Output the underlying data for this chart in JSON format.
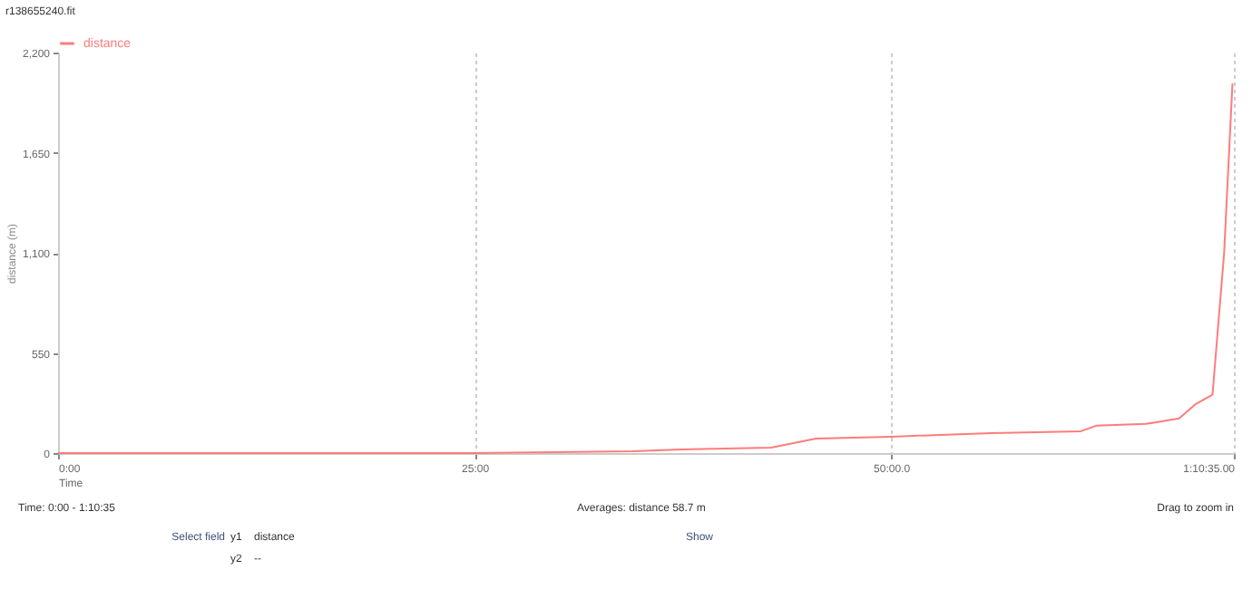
{
  "chart_data": {
    "type": "line",
    "title": "r138655240.fit",
    "xlabel": "Time",
    "ylabel": "distance (m)",
    "x": [
      0,
      25,
      34.5,
      37.4,
      42.8,
      45.5,
      50,
      56,
      61.4,
      62.3,
      65.3,
      67.3,
      68.3,
      69.3,
      70,
      70.5
    ],
    "series": [
      {
        "name": "distance",
        "color": "#ff7b7b",
        "values": [
          0,
          0,
          10,
          20,
          30,
          80,
          90,
          110,
          120,
          150,
          160,
          190,
          270,
          320,
          1100,
          2030
        ]
      }
    ],
    "xlim": [
      0,
      70.5833
    ],
    "xticks": [
      {
        "value": 0,
        "label": "0:00"
      },
      {
        "value": 25,
        "label": "25:00"
      },
      {
        "value": 50,
        "label": "50:00.0"
      },
      {
        "value": 70.5833,
        "label": "1:10:35.00"
      }
    ],
    "ylim": [
      0,
      2200
    ],
    "yticks": [
      {
        "value": 0,
        "label": "0"
      },
      {
        "value": 550,
        "label": "550"
      },
      {
        "value": 1100,
        "label": "1,100"
      },
      {
        "value": 1650,
        "label": "1,650"
      },
      {
        "value": 2200,
        "label": "2,200"
      }
    ],
    "grid": "x",
    "legend": "top",
    "marker": "none",
    "line_style": "solid",
    "annotations": [
      "Time: 0:00 - 1:10:35",
      "Averages: distance 58.7 m",
      "Drag to zoom in",
      "Select field",
      "y1",
      "distance",
      "y2",
      "--",
      "Show"
    ]
  }
}
